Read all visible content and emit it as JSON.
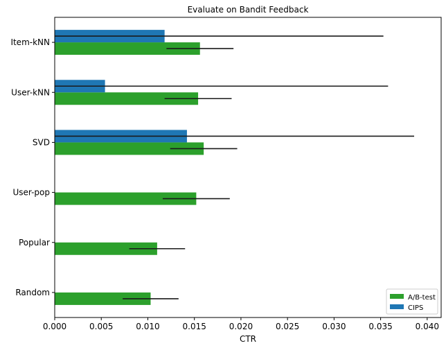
{
  "chart_data": {
    "type": "bar",
    "orientation": "horizontal",
    "title": "Evaluate on Bandit Feedback",
    "xlabel": "CTR",
    "ylabel": "",
    "xlim": [
      0,
      0.0415
    ],
    "xticks": [
      0.0,
      0.005,
      0.01,
      0.015,
      0.02,
      0.025,
      0.03,
      0.035,
      0.04
    ],
    "xtick_labels": [
      "0.000",
      "0.005",
      "0.010",
      "0.015",
      "0.020",
      "0.025",
      "0.030",
      "0.035",
      "0.040"
    ],
    "categories": [
      "Item-kNN",
      "User-kNN",
      "SVD",
      "User-pop",
      "Popular",
      "Random"
    ],
    "grid": false,
    "legend_position": "bottom-right",
    "series": [
      {
        "name": "A/B-test",
        "color": "#2ca02c",
        "values": [
          0.0156,
          0.0154,
          0.016,
          0.0152,
          0.011,
          0.0103
        ],
        "error": [
          0.0036,
          0.0036,
          0.0036,
          0.0036,
          0.003,
          0.003
        ]
      },
      {
        "name": "CIPS",
        "color": "#1f77b4",
        "values": [
          0.0118,
          0.0054,
          0.0142,
          null,
          null,
          null
        ],
        "error": [
          0.0235,
          0.0304,
          0.0244,
          null,
          null,
          null
        ]
      }
    ]
  }
}
